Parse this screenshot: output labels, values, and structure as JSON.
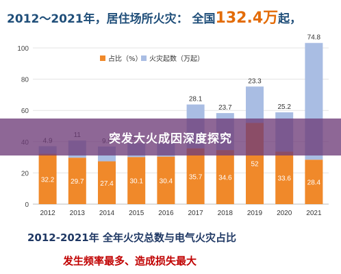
{
  "headline": {
    "prefix": "2012～2021年，居住场所火灾：  全国",
    "number": "132.4万",
    "suffix": "起，"
  },
  "overlay_caption": "突发大火成因深度探究",
  "footer": {
    "title": "2012-2021年  全年火灾总数与电气火灾占比",
    "subtitle": "发生频率最多、造成损失最大"
  },
  "chart_data": {
    "type": "bar",
    "categories": [
      "2012",
      "2013",
      "2014",
      "2015",
      "2016",
      "2017",
      "2018",
      "2019",
      "2020",
      "2021"
    ],
    "series": [
      {
        "name": "占比（%）",
        "color": "#f0892a",
        "values": [
          32.2,
          29.7,
          27.4,
          30.1,
          30.4,
          35.7,
          34.6,
          52,
          33.6,
          28.4
        ]
      },
      {
        "name": "火灾起数（万起）",
        "color": "#a9bde3",
        "values": [
          4.9,
          11,
          9.5,
          8.9,
          8.9,
          28.1,
          23.7,
          23.3,
          25.2,
          74.8
        ]
      }
    ],
    "stacked": true,
    "ylim": [
      0,
      100
    ],
    "yticks": [
      0,
      20,
      40,
      60,
      80,
      100
    ],
    "legend_position": "top-left",
    "grid": true
  }
}
